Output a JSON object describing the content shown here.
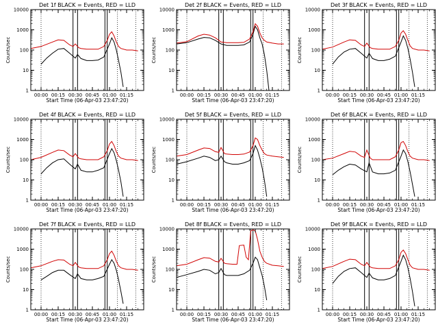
{
  "chart_data": [
    {
      "type": "line",
      "title": "Det 1f BLACK = Events, RED = LLD",
      "xlabel": "Start Time (06-Apr-03 23:47:20)",
      "ylabel": "Counts/sec",
      "yscale": "log",
      "ylim": [
        1,
        10000
      ],
      "xlim": [
        -9,
        90
      ],
      "series": [
        {
          "color": "#000000",
          "x": [
            0,
            5,
            10,
            15,
            20,
            25,
            30,
            32,
            35,
            40,
            45,
            50,
            55,
            60,
            62,
            64,
            66,
            68,
            70,
            72
          ],
          "y": [
            20,
            40,
            70,
            110,
            120,
            70,
            40,
            60,
            38,
            30,
            30,
            32,
            45,
            200,
            400,
            250,
            100,
            30,
            8,
            1.5
          ]
        },
        {
          "color": "#d00000",
          "x": [
            -9,
            0,
            10,
            15,
            20,
            25,
            28,
            30,
            33,
            35,
            40,
            45,
            50,
            55,
            58,
            60,
            62,
            64,
            66,
            68,
            70,
            75,
            80,
            85
          ],
          "y": [
            120,
            150,
            250,
            320,
            300,
            180,
            150,
            200,
            130,
            120,
            110,
            110,
            110,
            150,
            300,
            600,
            800,
            500,
            250,
            150,
            120,
            100,
            100,
            90
          ]
        }
      ]
    },
    {
      "type": "line",
      "title": "Det 2f BLACK = Events, RED = LLD",
      "xlabel": "Start Time (06-Apr-03 23:47:20)",
      "ylabel": "Counts/sec",
      "yscale": "log",
      "ylim": [
        1,
        10000
      ],
      "xlim": [
        -9,
        90
      ],
      "series": [
        {
          "color": "#000000",
          "x": [
            -9,
            0,
            10,
            15,
            20,
            25,
            30,
            35,
            40,
            45,
            50,
            55,
            58,
            60,
            62,
            64,
            66,
            68,
            70,
            72
          ],
          "y": [
            200,
            230,
            350,
            420,
            400,
            300,
            200,
            170,
            170,
            170,
            180,
            250,
            600,
            1500,
            1000,
            400,
            200,
            60,
            10,
            1
          ]
        },
        {
          "color": "#d00000",
          "x": [
            -9,
            0,
            10,
            15,
            20,
            25,
            30,
            35,
            40,
            45,
            50,
            55,
            58,
            60,
            62,
            64,
            66,
            68,
            70,
            75,
            80,
            85
          ],
          "y": [
            220,
            260,
            500,
            600,
            550,
            400,
            250,
            230,
            230,
            230,
            240,
            350,
            800,
            2000,
            1500,
            700,
            400,
            300,
            250,
            220,
            200,
            200
          ]
        }
      ]
    },
    {
      "type": "line",
      "title": "Det 3f BLACK = Events, RED = LLD",
      "xlabel": "Start Time (06-Apr-03 23:47:20)",
      "ylabel": "Counts/sec",
      "yscale": "log",
      "ylim": [
        1,
        10000
      ],
      "xlim": [
        -9,
        90
      ],
      "series": [
        {
          "color": "#000000",
          "x": [
            0,
            5,
            10,
            15,
            20,
            25,
            30,
            32,
            35,
            40,
            45,
            50,
            55,
            60,
            62,
            64,
            66,
            68,
            70,
            72
          ],
          "y": [
            20,
            45,
            80,
            110,
            120,
            70,
            40,
            70,
            38,
            30,
            30,
            35,
            50,
            250,
            500,
            300,
            120,
            35,
            8,
            1.5
          ]
        },
        {
          "color": "#d00000",
          "x": [
            -9,
            0,
            10,
            15,
            20,
            25,
            28,
            30,
            33,
            35,
            40,
            45,
            50,
            55,
            58,
            60,
            62,
            64,
            66,
            68,
            70,
            75,
            80,
            85
          ],
          "y": [
            110,
            140,
            250,
            320,
            300,
            180,
            150,
            220,
            130,
            120,
            110,
            110,
            110,
            150,
            300,
            700,
            900,
            600,
            300,
            160,
            120,
            100,
            100,
            90
          ]
        }
      ]
    },
    {
      "type": "line",
      "title": "Det 4f BLACK = Events, RED = LLD",
      "xlabel": "Start Time (06-Apr-03 23:47:20)",
      "ylabel": "Counts/sec",
      "yscale": "log",
      "ylim": [
        1,
        10000
      ],
      "xlim": [
        -9,
        90
      ],
      "series": [
        {
          "color": "#000000",
          "x": [
            0,
            5,
            10,
            15,
            20,
            25,
            30,
            32,
            35,
            40,
            45,
            50,
            55,
            60,
            62,
            64,
            66,
            68,
            70,
            72
          ],
          "y": [
            20,
            40,
            70,
            100,
            110,
            60,
            35,
            60,
            30,
            25,
            25,
            30,
            40,
            200,
            350,
            220,
            90,
            30,
            8,
            1.5
          ]
        },
        {
          "color": "#d00000",
          "x": [
            -9,
            0,
            10,
            15,
            20,
            25,
            28,
            30,
            33,
            35,
            40,
            45,
            50,
            55,
            58,
            60,
            62,
            64,
            66,
            68,
            70,
            75,
            80,
            85
          ],
          "y": [
            100,
            130,
            230,
            300,
            280,
            170,
            140,
            200,
            120,
            110,
            100,
            100,
            100,
            140,
            280,
            600,
            800,
            500,
            250,
            150,
            120,
            100,
            100,
            90
          ]
        }
      ]
    },
    {
      "type": "line",
      "title": "Det 5f BLACK = Events, RED = LLD",
      "xlabel": "Start Time (06-Apr-03 23:47:20)",
      "ylabel": "Counts/sec",
      "yscale": "log",
      "ylim": [
        1,
        10000
      ],
      "xlim": [
        -9,
        90
      ],
      "series": [
        {
          "color": "#000000",
          "x": [
            -9,
            0,
            10,
            15,
            20,
            25,
            28,
            30,
            33,
            35,
            40,
            45,
            50,
            55,
            58,
            60,
            62,
            64,
            66,
            68,
            70
          ],
          "y": [
            60,
            80,
            120,
            150,
            130,
            90,
            100,
            150,
            80,
            70,
            60,
            60,
            70,
            90,
            200,
            500,
            300,
            120,
            40,
            10,
            1.5
          ]
        },
        {
          "color": "#d00000",
          "x": [
            -9,
            0,
            10,
            15,
            20,
            25,
            28,
            30,
            33,
            35,
            40,
            45,
            50,
            55,
            58,
            60,
            62,
            64,
            66,
            68,
            70,
            75,
            80,
            85
          ],
          "y": [
            150,
            180,
            300,
            380,
            360,
            250,
            230,
            400,
            200,
            190,
            180,
            180,
            190,
            240,
            500,
            1200,
            1000,
            500,
            300,
            200,
            170,
            150,
            140,
            130
          ]
        }
      ]
    },
    {
      "type": "line",
      "title": "Det 6f BLACK = Events, RED = LLD",
      "xlabel": "Start Time (06-Apr-03 23:47:20)",
      "ylabel": "Counts/sec",
      "yscale": "log",
      "ylim": [
        1,
        10000
      ],
      "xlim": [
        -9,
        90
      ],
      "series": [
        {
          "color": "#000000",
          "x": [
            0,
            5,
            10,
            15,
            20,
            25,
            30,
            32,
            35,
            40,
            45,
            50,
            55,
            60,
            62,
            64,
            66,
            68,
            70,
            72
          ],
          "y": [
            18,
            30,
            45,
            60,
            55,
            35,
            25,
            70,
            25,
            20,
            20,
            22,
            30,
            150,
            300,
            200,
            80,
            25,
            6,
            1.5
          ]
        },
        {
          "color": "#d00000",
          "x": [
            -9,
            0,
            10,
            15,
            20,
            25,
            28,
            30,
            33,
            35,
            40,
            45,
            50,
            55,
            58,
            60,
            62,
            64,
            66,
            68,
            70,
            75,
            80,
            85
          ],
          "y": [
            100,
            120,
            200,
            260,
            240,
            150,
            130,
            300,
            120,
            100,
            100,
            100,
            100,
            140,
            300,
            700,
            800,
            500,
            250,
            150,
            120,
            100,
            100,
            90
          ]
        }
      ]
    },
    {
      "type": "line",
      "title": "Det 7f BLACK = Events, RED = LLD",
      "xlabel": "Start Time (06-Apr-03 23:47:20)",
      "ylabel": "Counts/sec",
      "yscale": "log",
      "ylim": [
        1,
        10000
      ],
      "xlim": [
        -9,
        90
      ],
      "series": [
        {
          "color": "#000000",
          "x": [
            0,
            5,
            10,
            15,
            20,
            25,
            30,
            32,
            35,
            40,
            45,
            50,
            55,
            60,
            62,
            64,
            66,
            68,
            70,
            72
          ],
          "y": [
            30,
            45,
            70,
            90,
            90,
            55,
            35,
            60,
            35,
            30,
            30,
            35,
            45,
            180,
            300,
            200,
            90,
            30,
            8,
            2
          ]
        },
        {
          "color": "#d00000",
          "x": [
            -9,
            0,
            10,
            15,
            20,
            25,
            28,
            30,
            33,
            35,
            40,
            45,
            50,
            55,
            58,
            60,
            62,
            64,
            66,
            68,
            70,
            75,
            80,
            85
          ],
          "y": [
            120,
            150,
            250,
            300,
            290,
            180,
            150,
            220,
            130,
            120,
            110,
            110,
            110,
            150,
            300,
            600,
            800,
            500,
            250,
            150,
            120,
            100,
            100,
            90
          ]
        }
      ]
    },
    {
      "type": "line",
      "title": "Det 8f BLACK = Events, RED = LLD",
      "xlabel": "Start Time (06-Apr-03 23:47:20)",
      "ylabel": "Counts/sec",
      "yscale": "log",
      "ylim": [
        1,
        10000
      ],
      "xlim": [
        -9,
        90
      ],
      "series": [
        {
          "color": "#000000",
          "x": [
            -9,
            0,
            10,
            15,
            20,
            25,
            28,
            30,
            33,
            35,
            40,
            45,
            50,
            55,
            58,
            60,
            62,
            64,
            66,
            68,
            70
          ],
          "y": [
            40,
            55,
            80,
            100,
            90,
            60,
            70,
            110,
            55,
            50,
            50,
            50,
            60,
            90,
            200,
            400,
            300,
            120,
            50,
            15,
            3
          ]
        },
        {
          "color": "#d00000",
          "x": [
            -9,
            0,
            10,
            15,
            20,
            25,
            28,
            30,
            33,
            35,
            40,
            44,
            46,
            50,
            52,
            54,
            56,
            58,
            60,
            62,
            64,
            66,
            68,
            70,
            75,
            80,
            85
          ],
          "y": [
            150,
            180,
            300,
            380,
            360,
            250,
            230,
            350,
            200,
            190,
            180,
            180,
            1500,
            1600,
            400,
            300,
            8000,
            9000,
            8000,
            3000,
            800,
            400,
            250,
            200,
            160,
            150,
            140
          ]
        }
      ]
    },
    {
      "type": "line",
      "title": "Det 9f BLACK = Events, RED = LLD",
      "xlabel": "Start Time (06-Apr-03 23:47:20)",
      "ylabel": "Counts/sec",
      "yscale": "log",
      "ylim": [
        1,
        10000
      ],
      "xlim": [
        -9,
        90
      ],
      "series": [
        {
          "color": "#000000",
          "x": [
            0,
            5,
            10,
            15,
            20,
            25,
            30,
            32,
            35,
            40,
            45,
            50,
            55,
            60,
            62,
            64,
            66,
            68,
            70,
            72
          ],
          "y": [
            20,
            45,
            80,
            110,
            120,
            70,
            40,
            65,
            38,
            30,
            30,
            35,
            50,
            250,
            500,
            300,
            120,
            35,
            8,
            1.5
          ]
        },
        {
          "color": "#d00000",
          "x": [
            -9,
            0,
            10,
            15,
            20,
            25,
            28,
            30,
            33,
            35,
            40,
            45,
            50,
            55,
            58,
            60,
            62,
            64,
            66,
            68,
            70,
            75,
            80,
            85
          ],
          "y": [
            110,
            140,
            250,
            320,
            300,
            180,
            150,
            220,
            130,
            120,
            110,
            110,
            110,
            150,
            300,
            700,
            900,
            600,
            300,
            160,
            120,
            100,
            100,
            90
          ]
        }
      ]
    }
  ],
  "axes": {
    "x_tick_labels": [
      "00:00",
      "00:15",
      "00:30",
      "00:45",
      "01:00",
      "01:15"
    ],
    "x_tick_values": [
      0,
      15,
      30,
      45,
      60,
      75
    ],
    "y_tick_labels": [
      "1",
      "10",
      "100",
      "1000",
      "10000"
    ],
    "y_tick_values": [
      1,
      10,
      100,
      1000,
      10000
    ],
    "dotted_verticals": [
      0,
      67,
      83
    ],
    "solid_verticals": [
      28,
      32,
      56,
      58
    ]
  }
}
